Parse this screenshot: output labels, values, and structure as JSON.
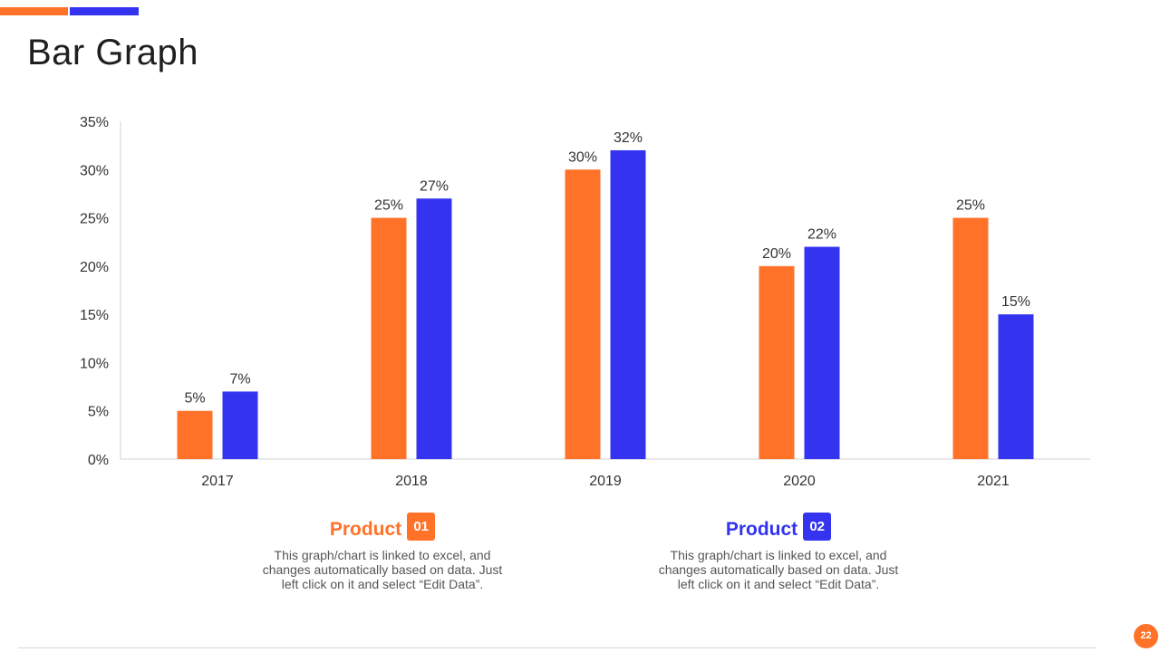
{
  "slide": {
    "title": "Bar Graph",
    "page_number": "22"
  },
  "colors": {
    "orange": "#FF7228",
    "blue": "#3333F0",
    "axis": "#d0d0d0"
  },
  "chart_data": {
    "type": "bar",
    "title": "",
    "xlabel": "",
    "ylabel": "",
    "ylim": [
      0,
      35
    ],
    "y_ticks": [
      "0%",
      "5%",
      "10%",
      "15%",
      "20%",
      "25%",
      "30%",
      "35%"
    ],
    "categories": [
      "2017",
      "2018",
      "2019",
      "2020",
      "2021"
    ],
    "series": [
      {
        "name": "Product 01",
        "values": [
          5,
          25,
          30,
          20,
          25
        ],
        "labels": [
          "5%",
          "25%",
          "30%",
          "20%",
          "25%"
        ]
      },
      {
        "name": "Product 02",
        "values": [
          7,
          27,
          32,
          22,
          15
        ],
        "labels": [
          "7%",
          "27%",
          "32%",
          "22%",
          "15%"
        ]
      }
    ],
    "grid": false
  },
  "legend": [
    {
      "name": "Product",
      "badge": "01",
      "desc": "This graph/chart is linked to excel, and changes automatically based on data. Just left click on it and select “Edit Data”."
    },
    {
      "name": "Product",
      "badge": "02",
      "desc": "This graph/chart is linked to excel, and changes automatically based on data. Just left click on it and select “Edit Data”."
    }
  ]
}
